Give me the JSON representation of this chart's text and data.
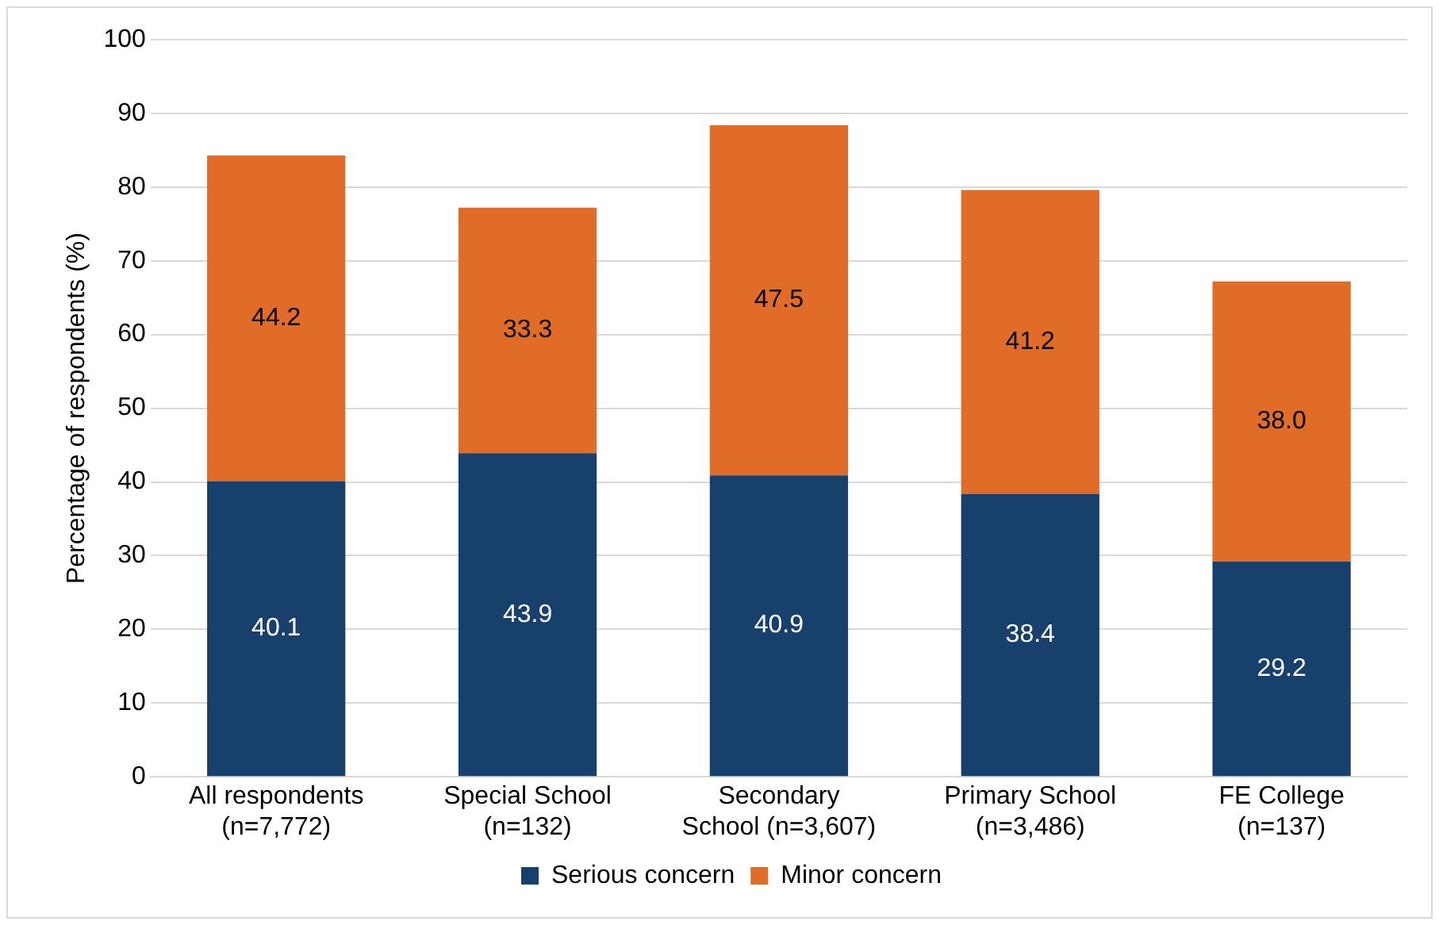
{
  "chart_data": {
    "type": "bar",
    "stacked": true,
    "categories": [
      "All respondents\n(n=7,772)",
      "Special School\n(n=132)",
      "Secondary\nSchool (n=3,607)",
      "Primary School\n(n=3,486)",
      "FE College\n(n=137)"
    ],
    "series": [
      {
        "name": "Serious concern",
        "color": "#17406d",
        "values": [
          40.1,
          43.9,
          40.9,
          38.4,
          29.2
        ],
        "value_labels": [
          "40.1",
          "43.9",
          "40.9",
          "38.4",
          "29.2"
        ]
      },
      {
        "name": "Minor concern",
        "color": "#e06c28",
        "values": [
          44.2,
          33.3,
          47.5,
          41.2,
          38.0
        ],
        "value_labels": [
          "44.2",
          "33.3",
          "47.5",
          "41.2",
          "38.0"
        ]
      }
    ],
    "ylabel": "Percentage of respondents (%)",
    "ylim": [
      0,
      100
    ],
    "yticks": [
      0,
      10,
      20,
      30,
      40,
      50,
      60,
      70,
      80,
      90,
      100
    ],
    "grid": "y",
    "legend": "bottom"
  }
}
